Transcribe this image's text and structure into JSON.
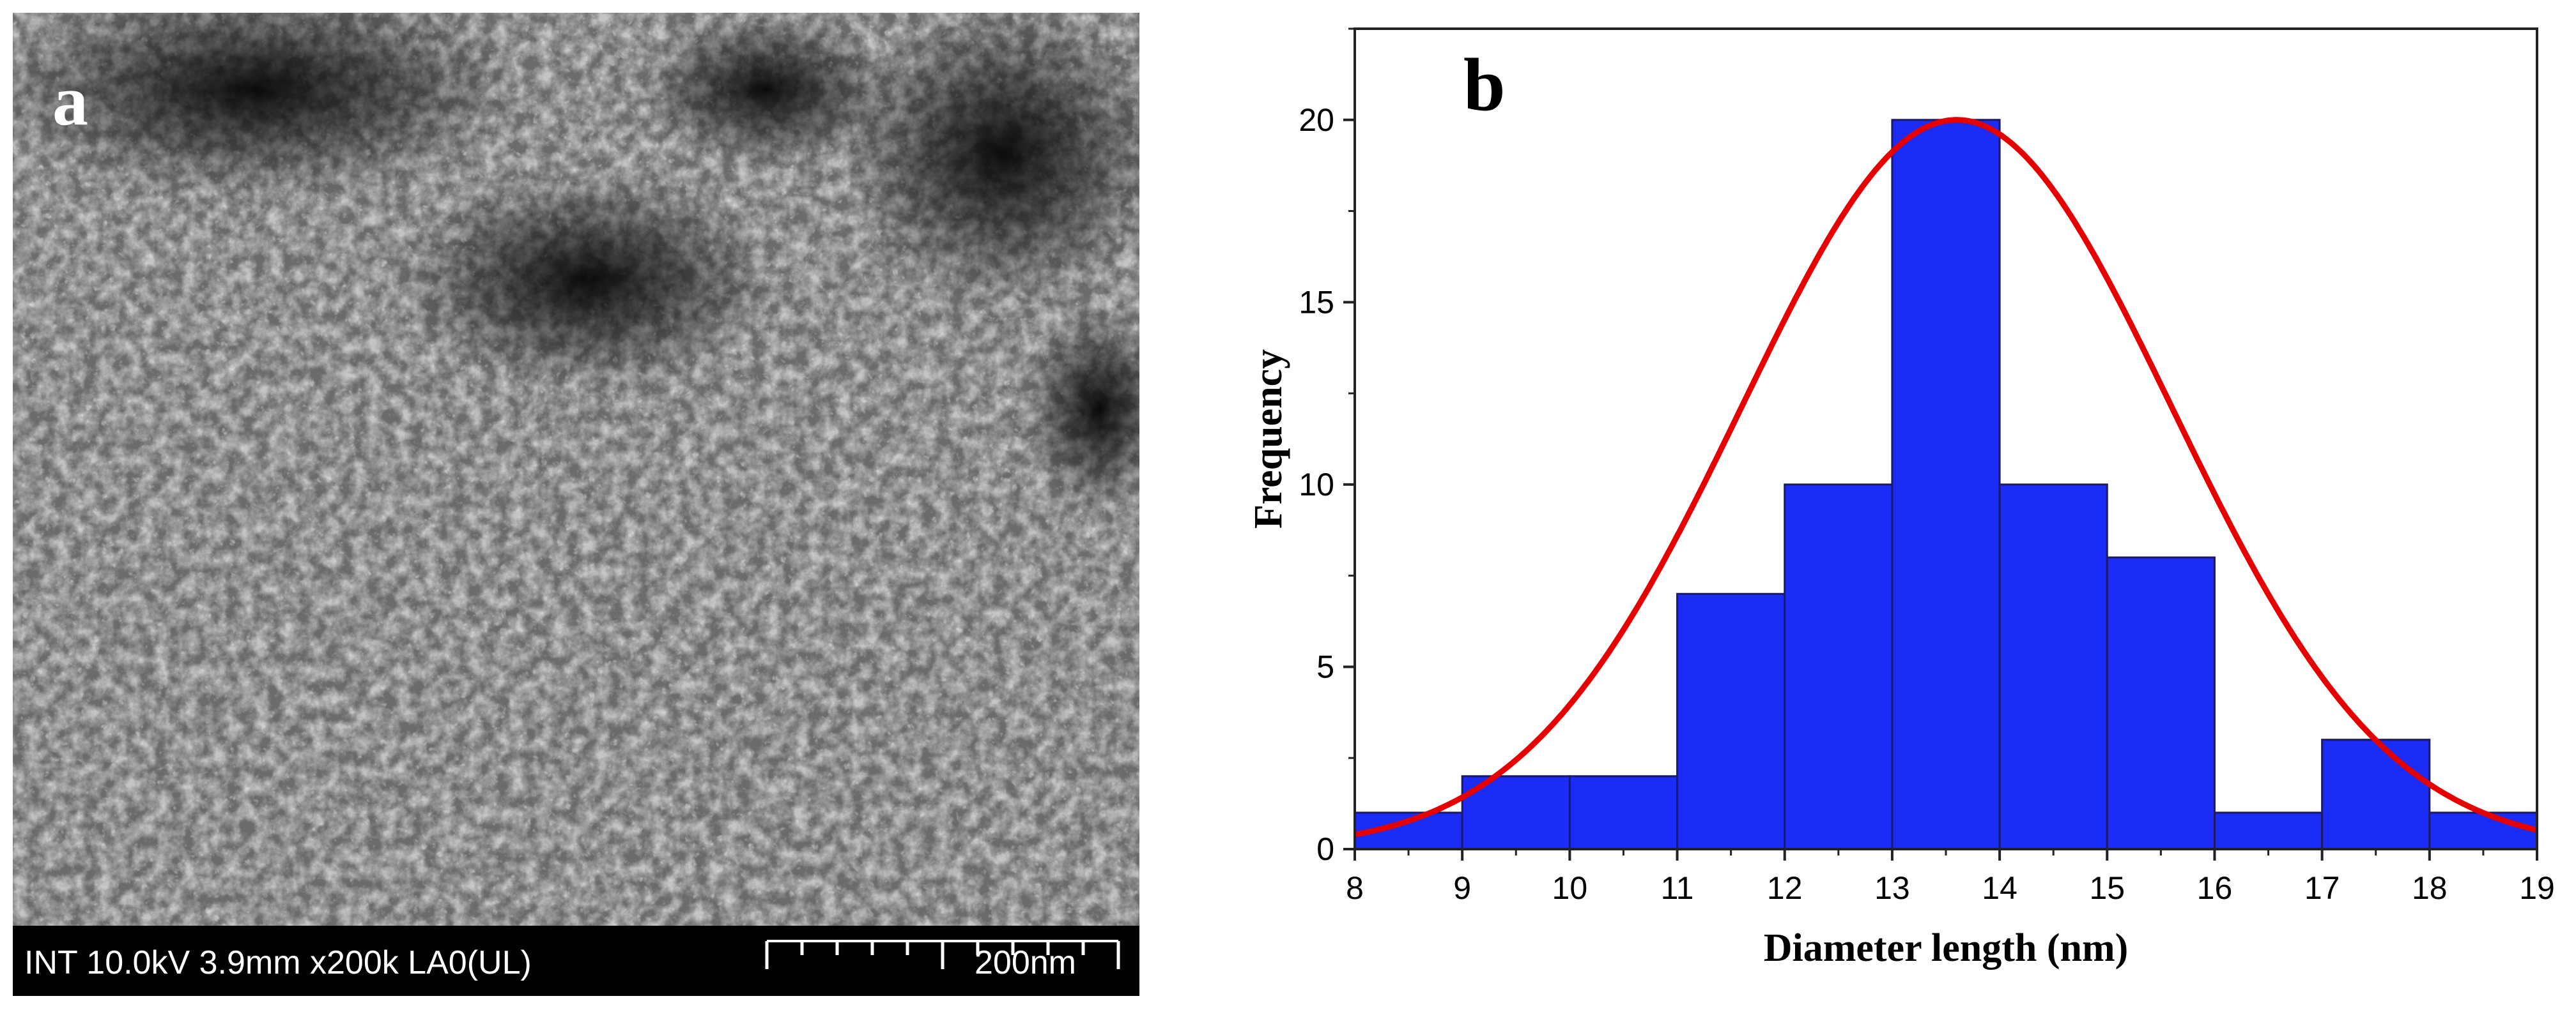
{
  "panel_a": {
    "label": "a",
    "info_text": "INT 10.0kV 3.9mm x200k LA0(UL)",
    "scale_text": "200nm"
  },
  "panel_b": {
    "label": "b"
  },
  "chart_data": {
    "type": "bar",
    "title": "",
    "xlabel": "Diameter length (nm)",
    "ylabel": "Frequency",
    "xlim": [
      8,
      19
    ],
    "ylim": [
      0,
      22.5
    ],
    "x_ticks": [
      8,
      9,
      10,
      11,
      12,
      13,
      14,
      15,
      16,
      17,
      18,
      19
    ],
    "y_ticks": [
      0,
      5,
      10,
      15,
      20
    ],
    "bins": [
      {
        "start": 8,
        "end": 9,
        "value": 1
      },
      {
        "start": 9,
        "end": 10,
        "value": 2
      },
      {
        "start": 10,
        "end": 11,
        "value": 2
      },
      {
        "start": 11,
        "end": 12,
        "value": 7
      },
      {
        "start": 12,
        "end": 13,
        "value": 10
      },
      {
        "start": 13,
        "end": 14,
        "value": 20
      },
      {
        "start": 14,
        "end": 15,
        "value": 10
      },
      {
        "start": 15,
        "end": 16,
        "value": 8
      },
      {
        "start": 16,
        "end": 17,
        "value": 1
      },
      {
        "start": 17,
        "end": 18,
        "value": 3
      },
      {
        "start": 18,
        "end": 19,
        "value": 1
      }
    ],
    "fit": {
      "type": "gaussian",
      "center": 13.6,
      "peak": 20,
      "sigma": 2.0
    },
    "bar_color": "#1a2cf5",
    "bar_edge_color": "#1a1a66",
    "fit_color": "#e60000",
    "grid": false,
    "legend": "none"
  }
}
